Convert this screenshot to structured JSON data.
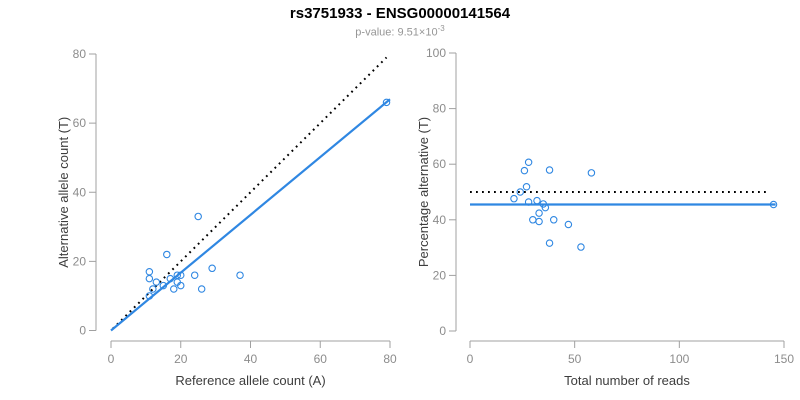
{
  "figure": {
    "title": "rs3751933 - ENSG00000141564",
    "subtitle_prefix": "p-value: 9.51×10",
    "subtitle_exponent": "-3"
  },
  "colors": {
    "accent_blue": "#2F87E2",
    "dotted_line_black": "#000000",
    "axis_gray": "#A0A0A0",
    "tick_label_gray": "#8C8C8C",
    "axis_label_dark": "#3D3D3D",
    "subtitle_gray": "#969696"
  },
  "chart_data": [
    {
      "type": "scatter",
      "name": "allele-counts-scatter",
      "xlabel": "Reference allele count (A)",
      "ylabel": "Alternative allele count (T)",
      "xlim": [
        0,
        80
      ],
      "ylim": [
        0,
        80
      ],
      "xticks": [
        0,
        20,
        40,
        60,
        80
      ],
      "yticks": [
        0,
        20,
        40,
        60,
        80
      ],
      "grid": false,
      "legend": "none",
      "points": [
        [
          11,
          17
        ],
        [
          11,
          15
        ],
        [
          16,
          22
        ],
        [
          25,
          33
        ],
        [
          13,
          14
        ],
        [
          12,
          12
        ],
        [
          11,
          10
        ],
        [
          15,
          13
        ],
        [
          17,
          15
        ],
        [
          19,
          16
        ],
        [
          20,
          16
        ],
        [
          19,
          14
        ],
        [
          18,
          12
        ],
        [
          20,
          13
        ],
        [
          24,
          16
        ],
        [
          29,
          18
        ],
        [
          26,
          12
        ],
        [
          37,
          16
        ],
        [
          79,
          66
        ]
      ],
      "lines": [
        {
          "name": "identity-line",
          "style": "dotted",
          "color": "#000000",
          "x1": 0.5,
          "y1": 0.5,
          "x2": 79,
          "y2": 79
        },
        {
          "name": "regression-line",
          "style": "solid",
          "color": "#2F87E2",
          "x1": 0,
          "y1": 0,
          "x2": 80,
          "y2": 66.9
        }
      ]
    },
    {
      "type": "scatter",
      "name": "percentage-alternative-scatter",
      "xlabel": "Total number of reads",
      "ylabel": "Percentage alternative (T)",
      "xlim": [
        0,
        150
      ],
      "ylim": [
        0,
        100
      ],
      "xticks": [
        0,
        50,
        100,
        150
      ],
      "yticks": [
        0,
        20,
        40,
        60,
        80,
        100
      ],
      "grid": false,
      "legend": "none",
      "points": [
        [
          28,
          60.7
        ],
        [
          26,
          57.7
        ],
        [
          38,
          57.9
        ],
        [
          58,
          56.9
        ],
        [
          27,
          51.9
        ],
        [
          24,
          50
        ],
        [
          21,
          47.6
        ],
        [
          28,
          46.4
        ],
        [
          32,
          46.9
        ],
        [
          35,
          45.7
        ],
        [
          36,
          44.4
        ],
        [
          33,
          42.4
        ],
        [
          30,
          40
        ],
        [
          33,
          39.4
        ],
        [
          40,
          40
        ],
        [
          47,
          38.3
        ],
        [
          38,
          31.6
        ],
        [
          53,
          30.2
        ],
        [
          145,
          45.5
        ]
      ],
      "lines": [
        {
          "name": "fifty-percent-line",
          "style": "dotted",
          "color": "#000000",
          "x1": 0,
          "y1": 50,
          "x2": 143,
          "y2": 50
        },
        {
          "name": "mean-percentage-line",
          "style": "solid",
          "color": "#2F87E2",
          "x1": 0,
          "y1": 45.5,
          "x2": 146,
          "y2": 45.5
        }
      ]
    }
  ]
}
